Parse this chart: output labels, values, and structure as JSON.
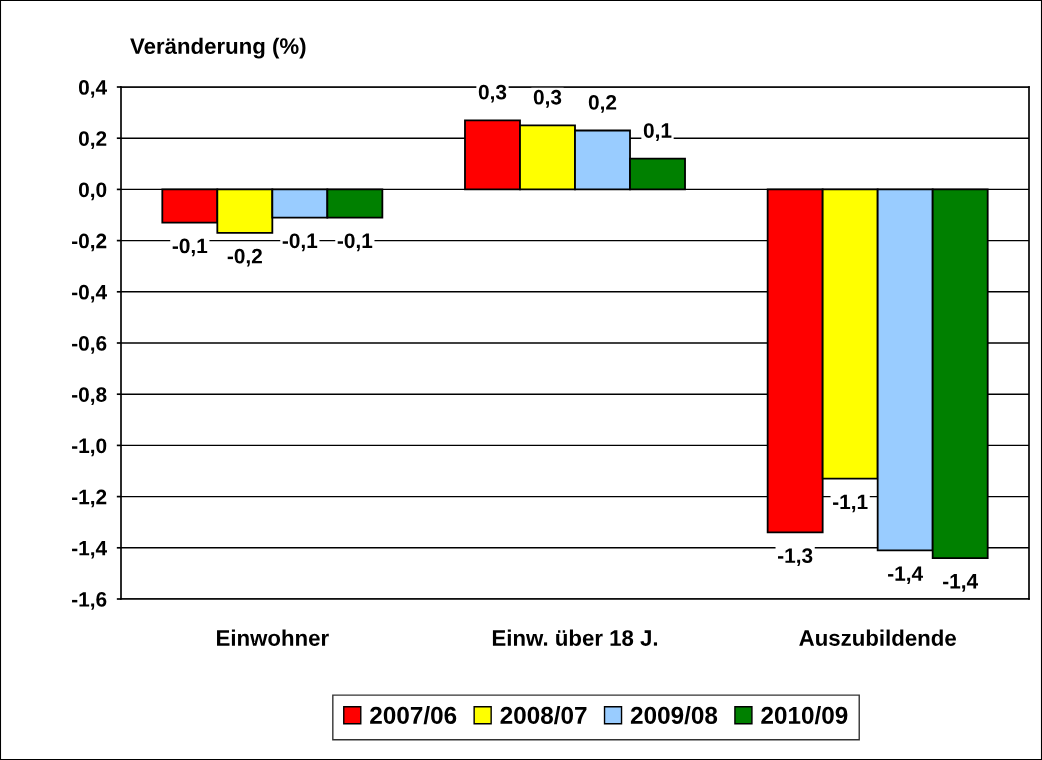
{
  "chart_data": {
    "type": "bar",
    "ylabel": "Veränderung (%)",
    "categories": [
      "Einwohner",
      "Einw. über 18 J.",
      "Auszubildende"
    ],
    "series": [
      {
        "name": "2007/06",
        "color": "#ff0000",
        "values": [
          -0.13,
          0.27,
          -1.34
        ],
        "value_labels": [
          "-0,1",
          "0,3",
          "-1,3"
        ]
      },
      {
        "name": "2008/07",
        "color": "#ffff00",
        "values": [
          -0.17,
          0.25,
          -1.13
        ],
        "value_labels": [
          "-0,2",
          "0,3",
          "-1,1"
        ]
      },
      {
        "name": "2009/08",
        "color": "#99ccff",
        "values": [
          -0.11,
          0.23,
          -1.41
        ],
        "value_labels": [
          "-0,1",
          "0,2",
          "-1,4"
        ]
      },
      {
        "name": "2010/09",
        "color": "#008000",
        "values": [
          -0.11,
          0.12,
          -1.44
        ],
        "value_labels": [
          "-0,1",
          "0,1",
          "-1,4"
        ]
      }
    ],
    "ylim": [
      -1.6,
      0.4
    ],
    "yticks": [
      {
        "value": 0.4,
        "label": "0,4"
      },
      {
        "value": 0.2,
        "label": "0,2"
      },
      {
        "value": 0,
        "label": "0,0"
      },
      {
        "value": -0.2,
        "label": "-0,2"
      },
      {
        "value": -0.4,
        "label": "-0,4"
      },
      {
        "value": -0.6,
        "label": "-0,6"
      },
      {
        "value": -0.8,
        "label": "-0,8"
      },
      {
        "value": -1.0,
        "label": "-1,0"
      },
      {
        "value": -1.2,
        "label": "-1,2"
      },
      {
        "value": -1.4,
        "label": "-1,4"
      },
      {
        "value": -1.6,
        "label": "-1,6"
      }
    ],
    "grid": "y",
    "legend": "bottom"
  }
}
